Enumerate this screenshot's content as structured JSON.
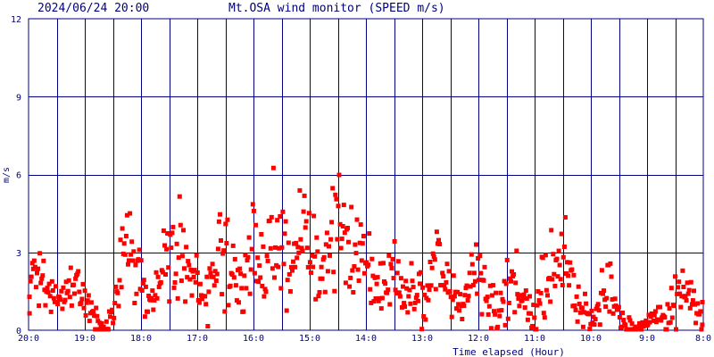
{
  "header": {
    "timestamp": "2024/06/24 20:00",
    "title": "Mt.OSA wind monitor (SPEED m/s)"
  },
  "chart_data": {
    "type": "scatter",
    "title": "Mt.OSA wind monitor (SPEED m/s)",
    "xlabel": "Time elapsed (Hour)",
    "ylabel": "m/s",
    "x_ticks": [
      "20:0",
      "19:0",
      "18:0",
      "17:0",
      "16:0",
      "15:0",
      "14:0",
      "13:0",
      "12:0",
      "11:0",
      "10:0",
      "9:0",
      "8:0"
    ],
    "y_ticks": [
      "0",
      "3",
      "6",
      "9",
      "12"
    ],
    "xlim": [
      0,
      12
    ],
    "ylim": [
      0,
      12
    ],
    "grid": true,
    "colors": {
      "background": "#ffffff",
      "grid": "#000080",
      "points": "#ff0000",
      "text": "#000080"
    },
    "series": [
      {
        "x": [
          0.0,
          0.1,
          0.2,
          0.3,
          0.4,
          0.5,
          0.6,
          0.7,
          0.8,
          0.9,
          1.0,
          1.1,
          1.2,
          1.3,
          1.4,
          1.5,
          1.6,
          1.7,
          1.8,
          1.9,
          2.0,
          2.1,
          2.2,
          2.3,
          2.4,
          2.5,
          2.6,
          2.7,
          2.8,
          2.9,
          3.0,
          3.1,
          3.2,
          3.3,
          3.4,
          3.5,
          3.6,
          3.7,
          3.8,
          3.9,
          4.0,
          4.1,
          4.2,
          4.3,
          4.4,
          4.5,
          4.6,
          4.7,
          4.8,
          4.9,
          5.0,
          5.1,
          5.2,
          5.3,
          5.4,
          5.5,
          5.6,
          5.7,
          5.8,
          5.9,
          6.0,
          6.1,
          6.2,
          6.3,
          6.4,
          6.5,
          6.6,
          6.7,
          6.8,
          6.9,
          7.0,
          7.1,
          7.2,
          7.3,
          7.4,
          7.5,
          7.6,
          7.7,
          7.8,
          7.9,
          8.0,
          8.1,
          8.2,
          8.3,
          8.4,
          8.5,
          8.6,
          8.7,
          8.8,
          8.9,
          9.0,
          9.1,
          9.2,
          9.3,
          9.4,
          9.5,
          9.6,
          9.7,
          9.8,
          9.9,
          10.0,
          10.1,
          10.2,
          10.3,
          10.4,
          10.5,
          10.6,
          10.7,
          10.8,
          10.9,
          11.0,
          11.1,
          11.2,
          11.3,
          11.4,
          11.5,
          11.6,
          11.7,
          11.8,
          11.9,
          12.0
        ],
        "y": [
          1.7,
          2.8,
          2.3,
          1.6,
          1.3,
          0.9,
          1.0,
          1.5,
          1.8,
          1.6,
          1.2,
          0.7,
          0.3,
          0.1,
          0.0,
          0.4,
          1.5,
          2.5,
          3.1,
          2.7,
          1.9,
          1.0,
          0.6,
          2.0,
          3.0,
          2.6,
          2.8,
          3.3,
          2.6,
          2.0,
          1.6,
          1.2,
          1.6,
          2.4,
          2.9,
          3.0,
          2.3,
          1.4,
          1.0,
          2.5,
          3.0,
          2.7,
          2.9,
          3.6,
          4.0,
          3.3,
          2.5,
          2.3,
          3.4,
          3.7,
          3.3,
          2.8,
          2.0,
          2.8,
          3.8,
          4.0,
          4.5,
          3.6,
          2.9,
          2.6,
          2.9,
          2.5,
          2.0,
          1.6,
          2.0,
          2.3,
          1.9,
          1.6,
          1.5,
          1.3,
          1.2,
          1.7,
          2.2,
          2.5,
          2.0,
          1.4,
          1.1,
          1.0,
          1.6,
          2.4,
          2.1,
          1.3,
          0.9,
          0.7,
          0.9,
          1.4,
          1.9,
          1.7,
          1.2,
          0.8,
          0.6,
          1.5,
          2.0,
          2.4,
          2.7,
          3.0,
          2.6,
          1.6,
          1.0,
          0.7,
          0.5,
          1.0,
          1.4,
          1.8,
          1.0,
          0.5,
          0.3,
          0.2,
          0.1,
          0.2,
          0.3,
          0.4,
          0.4,
          0.3,
          0.5,
          1.0,
          1.4,
          1.6,
          1.1,
          0.8,
          0.7
        ],
        "spread": [
          0.7,
          1.0,
          0.8,
          0.6,
          0.6,
          0.5,
          0.5,
          0.6,
          0.5,
          0.6,
          0.6,
          0.5,
          0.3,
          0.2,
          0.2,
          0.5,
          0.8,
          1.0,
          1.2,
          1.0,
          0.9,
          0.6,
          0.5,
          0.9,
          1.0,
          1.0,
          1.0,
          1.2,
          1.0,
          0.8,
          0.7,
          0.6,
          0.8,
          1.0,
          1.2,
          1.3,
          1.0,
          0.7,
          0.6,
          1.1,
          1.2,
          1.2,
          1.2,
          1.4,
          1.4,
          1.3,
          1.2,
          1.1,
          1.3,
          1.3,
          1.3,
          1.2,
          1.0,
          1.2,
          1.4,
          1.4,
          1.2,
          1.3,
          1.1,
          1.1,
          1.2,
          1.0,
          0.9,
          0.8,
          0.9,
          1.0,
          0.9,
          0.8,
          0.7,
          0.7,
          0.7,
          0.8,
          1.0,
          1.0,
          0.9,
          0.7,
          0.6,
          0.6,
          0.8,
          1.0,
          0.9,
          0.7,
          0.6,
          0.5,
          0.6,
          0.8,
          0.9,
          0.8,
          0.6,
          0.5,
          0.5,
          0.8,
          1.0,
          1.1,
          1.1,
          1.2,
          1.1,
          0.9,
          0.7,
          0.5,
          0.4,
          0.6,
          0.7,
          0.8,
          0.6,
          0.4,
          0.3,
          0.3,
          0.2,
          0.3,
          0.3,
          0.4,
          0.4,
          0.4,
          0.5,
          0.7,
          0.8,
          0.8,
          0.6,
          0.5,
          0.5
        ]
      }
    ]
  }
}
